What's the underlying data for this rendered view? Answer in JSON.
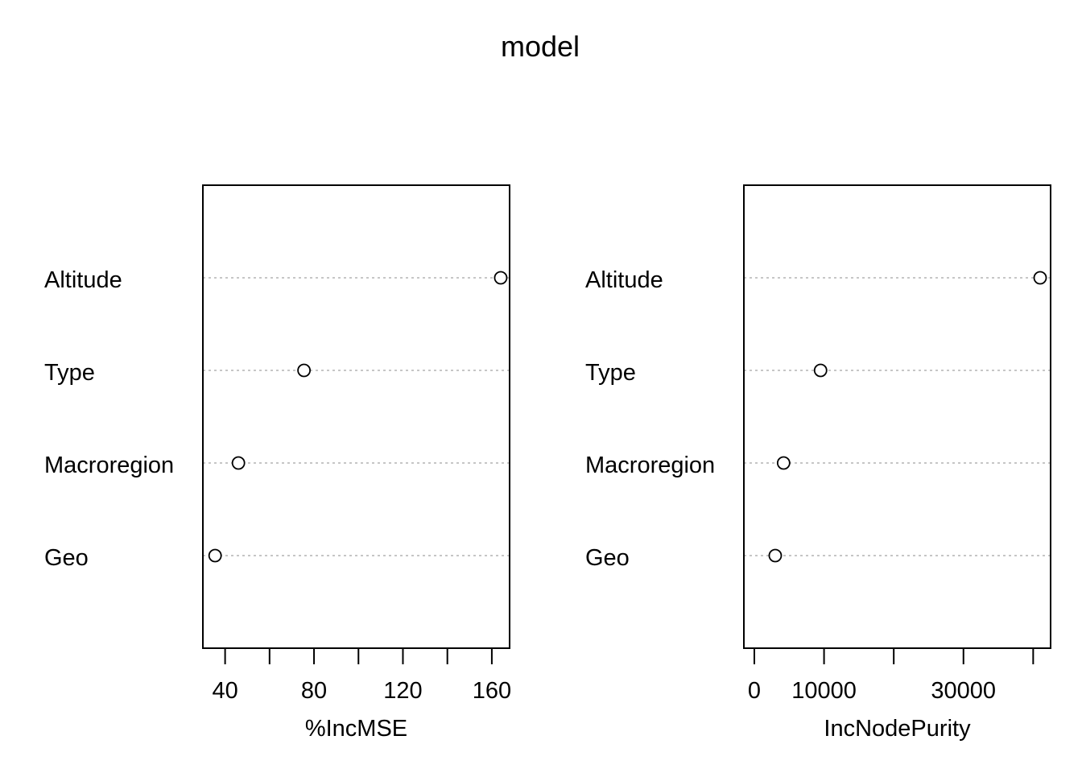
{
  "title": "model",
  "chart_data": [
    {
      "type": "scatter",
      "title": "",
      "xlabel": "%IncMSE",
      "ylabel": "",
      "categories": [
        "Altitude",
        "Type",
        "Macroregion",
        "Geo"
      ],
      "values": [
        164,
        75.5,
        46,
        35.5
      ],
      "xlim": [
        30,
        168
      ],
      "xticks": [
        40,
        60,
        80,
        100,
        120,
        140,
        160
      ],
      "xtick_labels": [
        "40",
        "",
        "80",
        "",
        "120",
        "",
        "160"
      ],
      "grid": "dotted horizontal guide lines",
      "marker": "open-circle"
    },
    {
      "type": "scatter",
      "title": "",
      "xlabel": "IncNodePurity",
      "ylabel": "",
      "categories": [
        "Altitude",
        "Type",
        "Macroregion",
        "Geo"
      ],
      "values": [
        41000,
        9500,
        4200,
        3000
      ],
      "xlim": [
        -1500,
        42500
      ],
      "xticks": [
        0,
        10000,
        20000,
        30000,
        40000
      ],
      "xtick_labels": [
        "0",
        "10000",
        "",
        "30000",
        ""
      ],
      "grid": "dotted horizontal guide lines",
      "marker": "open-circle"
    }
  ]
}
